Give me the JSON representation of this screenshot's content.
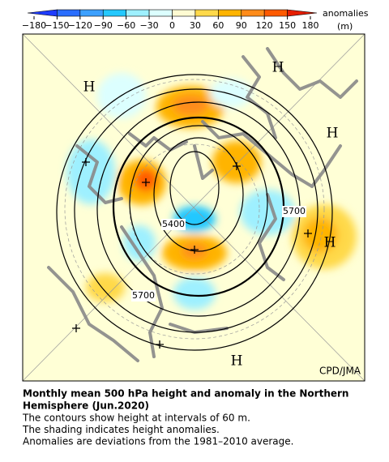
{
  "colorbar": {
    "ticks": [
      {
        "value": -180,
        "label": "−180"
      },
      {
        "value": -150,
        "label": "−150"
      },
      {
        "value": -120,
        "label": "−120"
      },
      {
        "value": -90,
        "label": "−90"
      },
      {
        "value": -60,
        "label": "−60"
      },
      {
        "value": -30,
        "label": "−30"
      },
      0,
      30,
      60,
      90,
      120,
      150,
      180
    ],
    "colors": [
      "#1e3cff",
      "#2a6eff",
      "#3ca0ff",
      "#24c8ff",
      "#9ef0ff",
      "#dcffff",
      "#fffbd2",
      "#ffd94a",
      "#ffb400",
      "#ff8c1a",
      "#ff5a00",
      "#e61e00"
    ],
    "title": "anomalies",
    "unit": "(m)"
  },
  "map": {
    "highs": [
      "H",
      "H",
      "H",
      "H",
      "H"
    ],
    "contour_labels": [
      "5400",
      "5700",
      "5700"
    ],
    "credit": "CPD/JMA"
  },
  "caption": {
    "title": [
      "Monthly mean 500 hPa height and anomaly in the Northern",
      "Hemisphere (Jun.2020)"
    ],
    "lines": [
      "The contours show height at intervals of 60 m.",
      "The shading indicates height anomalies.",
      "Anomalies are deviations from the 1981–2010 average."
    ]
  }
}
